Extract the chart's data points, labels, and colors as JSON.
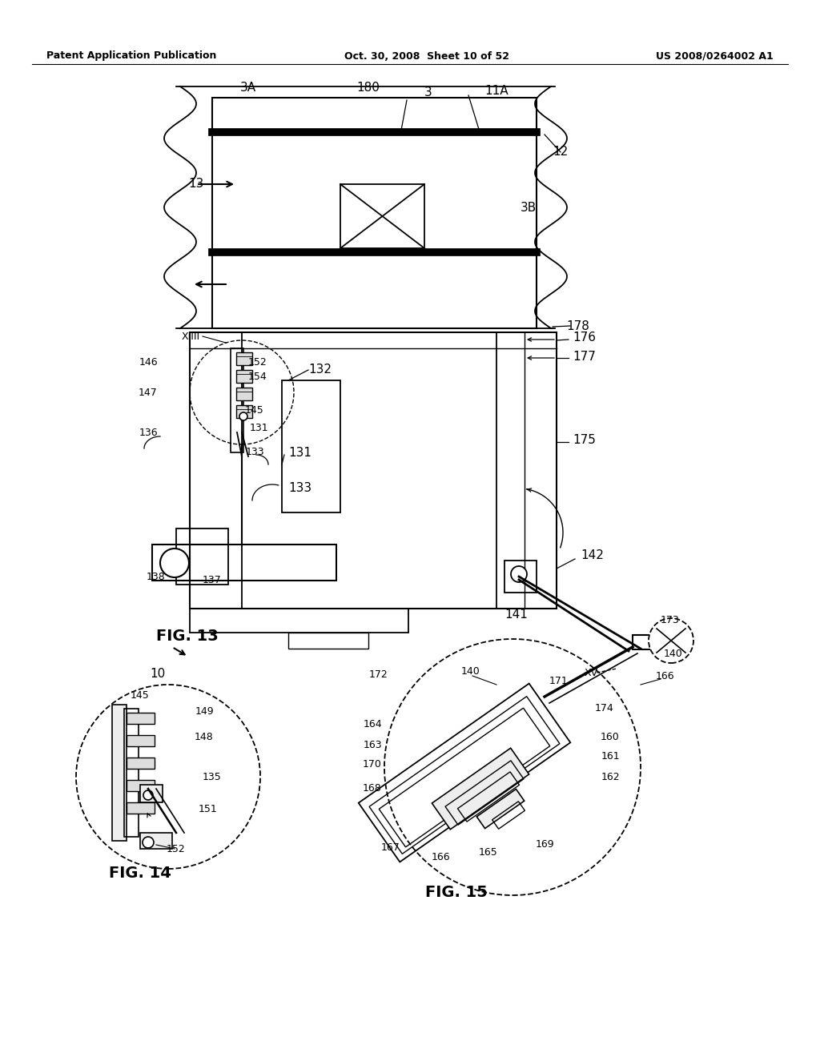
{
  "header_left": "Patent Application Publication",
  "header_mid": "Oct. 30, 2008  Sheet 10 of 52",
  "header_right": "US 2008/0264002 A1",
  "background": "#ffffff"
}
